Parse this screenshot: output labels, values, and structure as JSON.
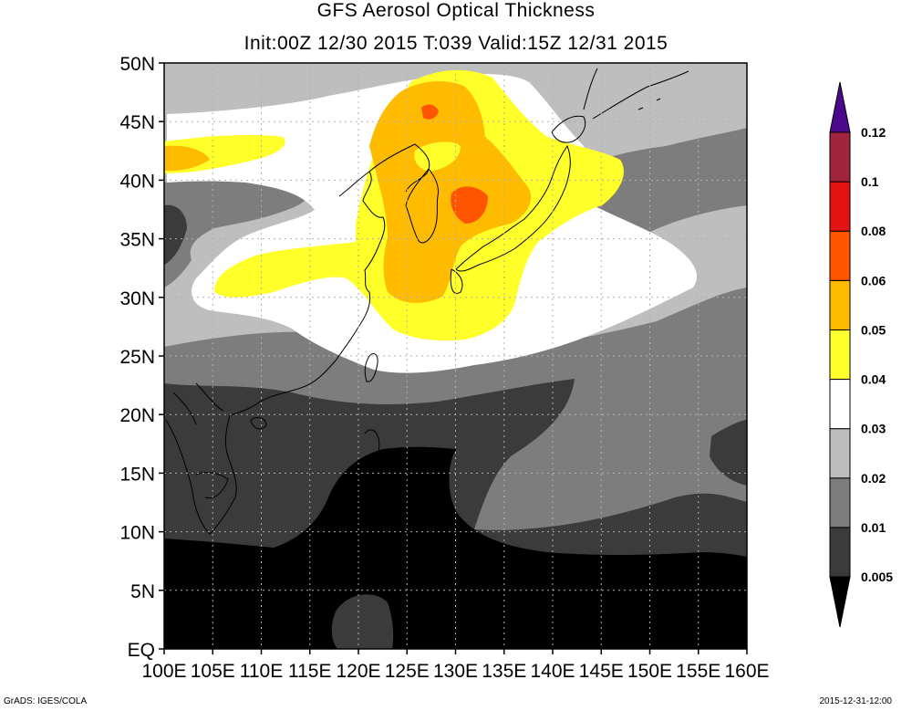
{
  "title": "GFS Aerosol Optical Thickness",
  "subtitle": "Init:00Z 12/30 2015 T:039 Valid:15Z 12/31 2015",
  "footer_left": "GrADS: IGES/COLA",
  "footer_right": "2015-12-31-12:00",
  "map": {
    "lon_range": [
      100,
      160
    ],
    "lat_range": [
      0,
      50
    ],
    "x_ticks": [
      "100E",
      "105E",
      "110E",
      "115E",
      "120E",
      "125E",
      "130E",
      "135E",
      "140E",
      "145E",
      "150E",
      "155E",
      "160E"
    ],
    "y_ticks": [
      "EQ",
      "5N",
      "10N",
      "15N",
      "20N",
      "25N",
      "30N",
      "35N",
      "40N",
      "45N",
      "50N"
    ],
    "grid": true
  },
  "colorbar": {
    "labels": [
      "0.005",
      "0.01",
      "0.02",
      "0.03",
      "0.04",
      "0.05",
      "0.06",
      "0.08",
      "0.1",
      "0.12"
    ],
    "colors": [
      "#000000",
      "#3b3b3b",
      "#7d7d7d",
      "#bebebe",
      "#ffffff",
      "#ffff2a",
      "#ffbb00",
      "#ff5500",
      "#e51212",
      "#a0243c",
      "#4b0a8c"
    ]
  }
}
